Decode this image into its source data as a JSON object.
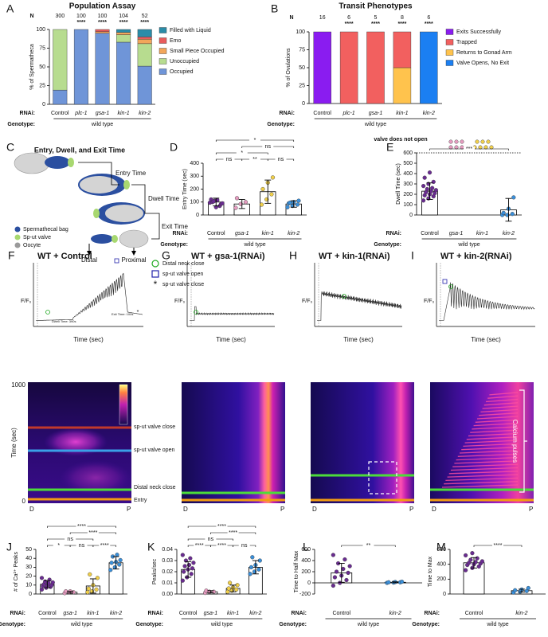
{
  "chart_data": [
    {
      "panel": "A",
      "type": "stacked-bar",
      "title": "Population Assay",
      "n_label": "N",
      "n": [
        300,
        100,
        100,
        104,
        52
      ],
      "significance": [
        null,
        "****",
        "****",
        "****",
        "****"
      ],
      "categories": [
        "Control",
        "plc-1",
        "gsa-1",
        "kin-1",
        "kin-2"
      ],
      "series": [
        {
          "name": "Filled with Liquid",
          "color": "#2a8ca8",
          "values": [
            0,
            0,
            0,
            4,
            10
          ]
        },
        {
          "name": "Emo",
          "color": "#e85c5c",
          "values": [
            0,
            0,
            3,
            0,
            3
          ]
        },
        {
          "name": "Small Piece Occupied",
          "color": "#f2a65a",
          "values": [
            0,
            0,
            2,
            3,
            6
          ]
        },
        {
          "name": "Unoccupied",
          "color": "#b7dc8f",
          "values": [
            81,
            0,
            0,
            10,
            30
          ]
        },
        {
          "name": "Occupied",
          "color": "#6f95d8",
          "values": [
            19,
            100,
            95,
            83,
            51
          ]
        }
      ],
      "ylabel": "% of Spermatheca",
      "ylim": [
        0,
        100
      ],
      "yticks": [
        0,
        25,
        50,
        75,
        100
      ],
      "rnai_label": "RNAi:",
      "genotype_label": "Genotype:",
      "genotype": "wild type"
    },
    {
      "panel": "B",
      "type": "stacked-bar",
      "title": "Transit Phenotypes",
      "n_label": "N",
      "n": [
        16,
        6,
        5,
        8,
        6
      ],
      "significance": [
        null,
        "****",
        "****",
        "****",
        "****"
      ],
      "categories": [
        "Control",
        "plc-1",
        "gsa-1",
        "kin-1",
        "kin-2"
      ],
      "series": [
        {
          "name": "Exits Successfully",
          "color": "#8a1cf0",
          "values": [
            100,
            0,
            0,
            0,
            0
          ]
        },
        {
          "name": "Trapped",
          "color": "#f2605f",
          "values": [
            0,
            100,
            100,
            50,
            0
          ]
        },
        {
          "name": "Returns to Gonad Arm",
          "color": "#ffc34d",
          "values": [
            0,
            0,
            0,
            50,
            0
          ]
        },
        {
          "name": "Valve Opens, No Exit",
          "color": "#1b7ff2",
          "values": [
            0,
            0,
            0,
            0,
            100
          ]
        }
      ],
      "ylabel": "% of Ovulations",
      "ylim": [
        0,
        100
      ],
      "yticks": [
        0,
        25,
        50,
        75,
        100
      ],
      "rnai_label": "RNAi:",
      "genotype_label": "Genotype:",
      "genotype": "wild type"
    },
    {
      "panel": "D",
      "type": "dotplot",
      "categories": [
        "Control",
        "gsa-1",
        "kin-1",
        "kin-2"
      ],
      "colors": [
        "#6a2c91",
        "#e59bbf",
        "#f0cf4a",
        "#3a8fd9"
      ],
      "means": [
        100,
        85,
        180,
        85
      ],
      "errors": [
        30,
        35,
        90,
        25
      ],
      "points": [
        [
          95,
          110,
          70,
          120,
          60,
          85,
          100,
          115,
          90,
          105
        ],
        [
          55,
          85,
          100,
          130
        ],
        [
          80,
          120,
          160,
          200,
          250,
          290
        ],
        [
          60,
          70,
          80,
          90,
          100,
          110,
          95
        ]
      ],
      "comparisons": [
        {
          "from": "Control",
          "to": "gsa-1",
          "label": "ns"
        },
        {
          "from": "gsa-1",
          "to": "kin-1",
          "label": "**"
        },
        {
          "from": "kin-1",
          "to": "kin-2",
          "label": "ns"
        },
        {
          "from": "Control",
          "to": "kin-1",
          "label": "*"
        },
        {
          "from": "gsa-1",
          "to": "kin-2",
          "label": "ns"
        },
        {
          "from": "Control",
          "to": "kin-2",
          "label": "*"
        }
      ],
      "ylabel": "Entry Time (sec)",
      "ylim": [
        0,
        400
      ],
      "yticks": [
        0,
        100,
        200,
        300,
        400
      ],
      "rnai_label": "RNAi:",
      "genotype_label": "Genotype:",
      "genotype": "wild type"
    },
    {
      "panel": "E",
      "type": "dotplot",
      "categories": [
        "Control",
        "gsa-1",
        "kin-1",
        "kin-2"
      ],
      "colors": [
        "#6a2c91",
        "#e59bbf",
        "#f0cf4a",
        "#3a8fd9"
      ],
      "means": [
        230,
        null,
        null,
        50
      ],
      "errors": [
        80,
        null,
        null,
        110
      ],
      "points": [
        [
          140,
          160,
          180,
          190,
          200,
          210,
          220,
          230,
          240,
          250,
          260,
          280,
          300,
          320,
          360,
          410
        ],
        [],
        [],
        [
          0,
          0,
          10,
          20,
          60,
          170
        ]
      ],
      "comparisons": [
        {
          "from": "Control",
          "to": "kin-2",
          "label": "***"
        }
      ],
      "annotation": "valve does not open",
      "ylabel": "Dwell Time (sec)",
      "ylim": [
        0,
        600
      ],
      "yticks": [
        0,
        100,
        200,
        300,
        400,
        500,
        600
      ],
      "rnai_label": "RNAi:",
      "genotype_label": "Genotype:",
      "genotype": "wild type"
    },
    {
      "panel": "J",
      "type": "dotplot",
      "categories": [
        "Control",
        "gsa-1",
        "kin-1",
        "kin-2"
      ],
      "colors": [
        "#6a2c91",
        "#e59bbf",
        "#f0cf4a",
        "#3a8fd9"
      ],
      "means": [
        11,
        2,
        9,
        35
      ],
      "errors": [
        4,
        1,
        8,
        7
      ],
      "points": [
        [
          5,
          7,
          8,
          9,
          10,
          10,
          11,
          12,
          13,
          14,
          16,
          18
        ],
        [
          1,
          2,
          2,
          3,
          3
        ],
        [
          2,
          3,
          5,
          6,
          10,
          18,
          22
        ],
        [
          27,
          30,
          33,
          35,
          36,
          38,
          42,
          44
        ]
      ],
      "comparisons": [
        {
          "from": "Control",
          "to": "gsa-1",
          "label": "*"
        },
        {
          "from": "gsa-1",
          "to": "kin-1",
          "label": "ns"
        },
        {
          "from": "kin-1",
          "to": "kin-2",
          "label": "****"
        },
        {
          "from": "Control",
          "to": "kin-1",
          "label": "ns"
        },
        {
          "from": "gsa-1",
          "to": "kin-2",
          "label": "****"
        },
        {
          "from": "Control",
          "to": "kin-2",
          "label": "****"
        }
      ],
      "ylabel": "# of Ca²⁺ Peaks",
      "ylim": [
        0,
        50
      ],
      "yticks": [
        0,
        10,
        20,
        30,
        40,
        50
      ],
      "rnai_label": "RNAi:",
      "genotype_label": "Genotype:",
      "genotype": "wild type"
    },
    {
      "panel": "K",
      "type": "dotplot",
      "categories": [
        "Control",
        "gsa-1",
        "kin-1",
        "kin-2"
      ],
      "colors": [
        "#6a2c91",
        "#e59bbf",
        "#f0cf4a",
        "#3a8fd9"
      ],
      "means": [
        0.022,
        0.002,
        0.005,
        0.024
      ],
      "errors": [
        0.007,
        0.001,
        0.003,
        0.006
      ],
      "points": [
        [
          0.012,
          0.015,
          0.018,
          0.02,
          0.022,
          0.023,
          0.025,
          0.026,
          0.028,
          0.03,
          0.032,
          0.035
        ],
        [
          0.001,
          0.002,
          0.002,
          0.003
        ],
        [
          0.002,
          0.003,
          0.004,
          0.005,
          0.006,
          0.008,
          0.01
        ],
        [
          0.018,
          0.02,
          0.022,
          0.024,
          0.026,
          0.03,
          0.033
        ]
      ],
      "comparisons": [
        {
          "from": "Control",
          "to": "gsa-1",
          "label": "****"
        },
        {
          "from": "gsa-1",
          "to": "kin-1",
          "label": "****"
        },
        {
          "from": "kin-1",
          "to": "kin-2",
          "label": "ns"
        },
        {
          "from": "Control",
          "to": "kin-1",
          "label": "ns"
        },
        {
          "from": "gsa-1",
          "to": "kin-2",
          "label": "****"
        },
        {
          "from": "Control",
          "to": "kin-2",
          "label": "****"
        }
      ],
      "ylabel": "Peaks/sec",
      "ylim": [
        0,
        0.04
      ],
      "yticks": [
        {
          "value": 0,
          "label": "0.00"
        },
        0.01,
        0.02,
        0.03,
        0.04
      ],
      "rnai_label": "RNAi:",
      "genotype_label": "Genotype:",
      "genotype": "wild type"
    },
    {
      "panel": "L",
      "type": "dotplot",
      "categories": [
        "Control",
        "kin-2"
      ],
      "colors": [
        "#6a2c91",
        "#3a8fd9"
      ],
      "means": [
        180,
        10
      ],
      "errors": [
        170,
        8
      ],
      "points": [
        [
          -50,
          0,
          50,
          100,
          130,
          180,
          200,
          250,
          300,
          350,
          420,
          500
        ],
        [
          0,
          5,
          10,
          10,
          15,
          20
        ]
      ],
      "comparisons": [
        {
          "from": "Control",
          "to": "kin-2",
          "label": "**"
        }
      ],
      "ylabel": "Time to Half Max",
      "ylim": [
        -200,
        600
      ],
      "yticks": [
        -200,
        0,
        200,
        400,
        600
      ],
      "rnai_label": "RNAi:",
      "genotype_label": "Genotype:",
      "genotype": "wild type"
    },
    {
      "panel": "M",
      "type": "dotplot",
      "categories": [
        "Control",
        "kin-2"
      ],
      "colors": [
        "#6a2c91",
        "#3a8fd9"
      ],
      "means": [
        420,
        45
      ],
      "errors": [
        70,
        20
      ],
      "points": [
        [
          320,
          350,
          370,
          390,
          400,
          410,
          420,
          430,
          440,
          460,
          480,
          520,
          550
        ],
        [
          20,
          30,
          40,
          50,
          60,
          80
        ]
      ],
      "comparisons": [
        {
          "from": "Control",
          "to": "kin-2",
          "label": "****"
        }
      ],
      "ylabel": "Time to Max",
      "ylim": [
        0,
        600
      ],
      "yticks": [
        0,
        200,
        400,
        600
      ],
      "rnai_label": "RNAi:",
      "genotype_label": "Genotype:",
      "genotype": "wild type"
    }
  ],
  "diagram": {
    "panel": "C",
    "title": "Entry, Dwell, and Exit Time",
    "steps": [
      "Entry Time",
      "Dwell Time",
      "Exit Time"
    ],
    "legend": [
      "Spermathecal bag",
      "Sp-ut valve",
      "Oocyte"
    ],
    "ends": [
      "Distal",
      "Proximal"
    ]
  },
  "traces": [
    {
      "panel": "F",
      "title": "WT + Control"
    },
    {
      "panel": "G",
      "title": "WT + gsa-1(RNAi)"
    },
    {
      "panel": "H",
      "title": "WT + kin-1(RNAi)"
    },
    {
      "panel": "I",
      "title": "WT + kin-2(RNAi)"
    }
  ],
  "trace_axis": {
    "y": "F/F₀",
    "x": "Time (sec)"
  },
  "trace_legend": [
    "Distal neck close",
    "sp-ut valve open",
    "sp-ut valve close"
  ],
  "trace_notes": [
    "Dwell Time: 390s",
    "Exit Time: 100s"
  ],
  "heatmap": {
    "y_label": "Time (sec)",
    "y_top": 1000,
    "y_bottom": 0,
    "distal": "D",
    "proximal": "P",
    "events": [
      "sp-ut valve close",
      "sp-ut valve open",
      "Distal neck close",
      "Entry"
    ],
    "pulses": "Calcium pulses"
  }
}
